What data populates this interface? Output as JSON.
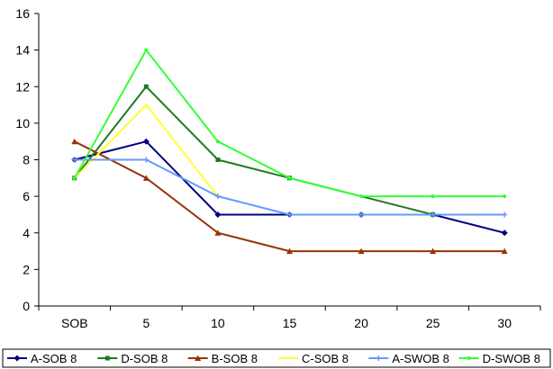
{
  "chart_data": {
    "type": "line",
    "title": "",
    "xlabel": "",
    "ylabel": "",
    "categories": [
      "SOB",
      "5",
      "10",
      "15",
      "20",
      "25",
      "30"
    ],
    "ylim": [
      0,
      16
    ],
    "yticks": [
      0,
      2,
      4,
      6,
      8,
      10,
      12,
      14,
      16
    ],
    "grid": false,
    "legend_position": "bottom",
    "series": [
      {
        "name": "A-SOB 8",
        "color": "#000080",
        "marker": "diamond",
        "values": [
          8,
          9,
          5,
          5,
          5,
          5,
          4
        ]
      },
      {
        "name": "D-SOB 8",
        "color": "#1f7a1f",
        "marker": "square",
        "values": [
          7,
          12,
          8,
          7,
          null,
          5,
          null
        ]
      },
      {
        "name": "B-SOB 8",
        "color": "#993300",
        "marker": "triangle",
        "values": [
          9,
          7,
          4,
          3,
          3,
          3,
          3
        ]
      },
      {
        "name": "C-SOB 8",
        "color": "#ffff33",
        "marker": "none",
        "values": [
          7,
          11,
          6,
          null,
          null,
          null,
          null
        ]
      },
      {
        "name": "A-SWOB 8",
        "color": "#6699ff",
        "marker": "star",
        "values": [
          8,
          8,
          6,
          5,
          5,
          5,
          5
        ]
      },
      {
        "name": "D-SWOB 8",
        "color": "#33ff33",
        "marker": "dot",
        "values": [
          7,
          14,
          9,
          7,
          6,
          6,
          6
        ]
      }
    ]
  }
}
